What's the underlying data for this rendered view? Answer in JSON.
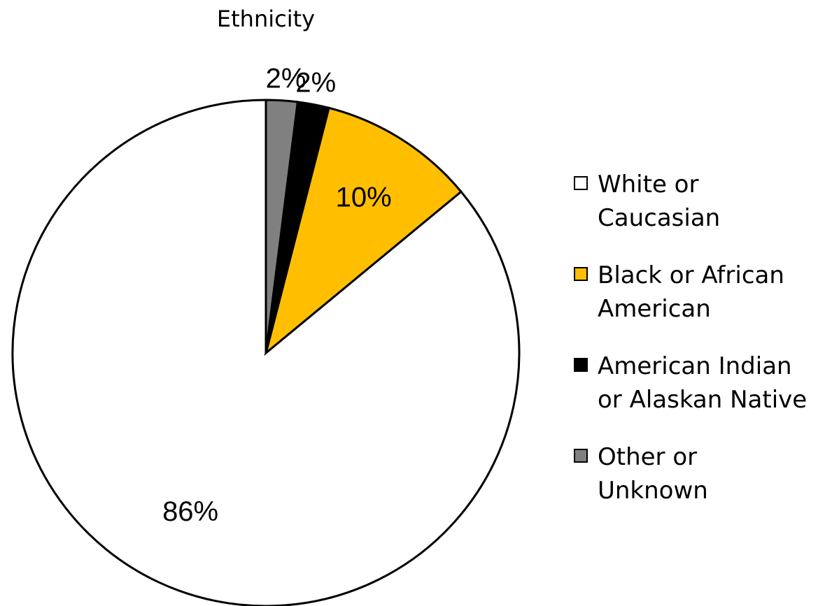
{
  "chart_data": {
    "type": "pie",
    "title": "Ethnicity",
    "start_angle_deg": 0,
    "direction": "counterclockwise",
    "slices": [
      {
        "label": "White or\nCaucasian",
        "value": 86,
        "display": "86%",
        "color": "#ffffff"
      },
      {
        "label": "Black or African\nAmerican",
        "value": 10,
        "display": "10%",
        "color": "#ffbf00"
      },
      {
        "label": "American Indian\nor Alaskan Native",
        "value": 2,
        "display": "2%",
        "color": "#000000"
      },
      {
        "label": "Other or\nUnknown",
        "value": 2,
        "display": "2%",
        "color": "#808080"
      }
    ],
    "legend_placement": "right"
  }
}
